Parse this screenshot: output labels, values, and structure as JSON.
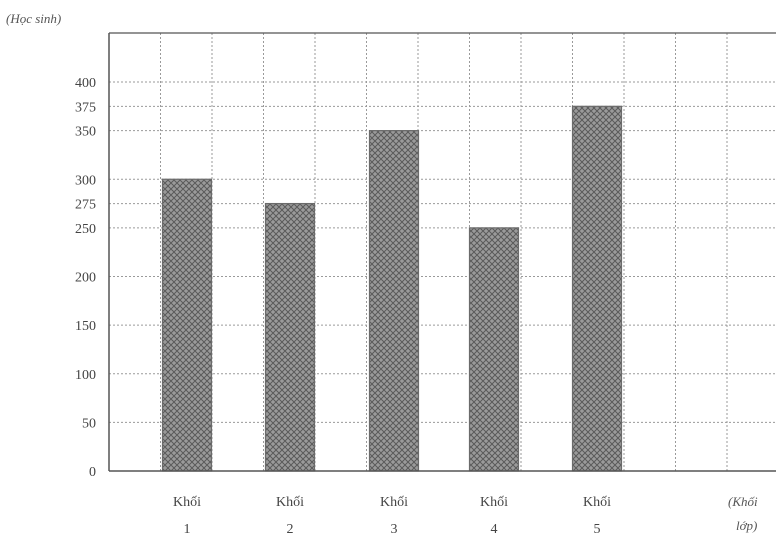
{
  "chart_data": {
    "type": "bar",
    "ylabel": "(Học sinh)",
    "xlabel": [
      "(Khối",
      "lớp)"
    ],
    "categories": [
      [
        "Khối",
        "1"
      ],
      [
        "Khối",
        "2"
      ],
      [
        "Khối",
        "3"
      ],
      [
        "Khối",
        "4"
      ],
      [
        "Khối",
        "5"
      ]
    ],
    "values": [
      300,
      275,
      350,
      250,
      375
    ],
    "y_ticks": [
      0,
      50,
      100,
      150,
      200,
      250,
      275,
      300,
      350,
      375,
      400
    ],
    "ylim": [
      0,
      430
    ],
    "grid": true,
    "bar_pattern": "cross-hatch",
    "colors": {
      "bar": "#8a8a8a",
      "grid": "#9a9a9a",
      "axis": "#555555"
    }
  }
}
